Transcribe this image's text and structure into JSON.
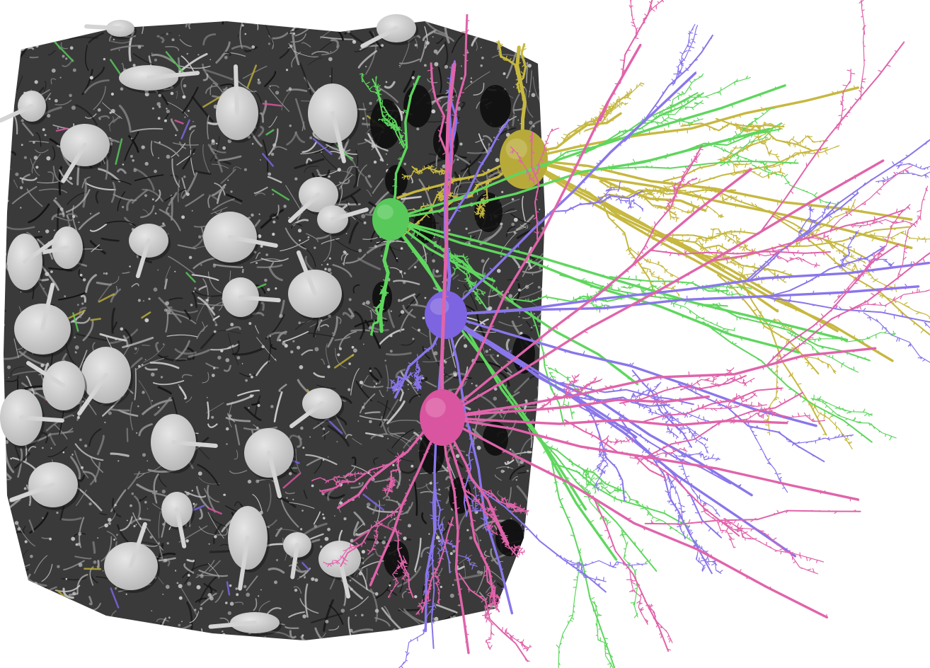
{
  "image": {
    "background": "#ffffff",
    "tissue_block": {
      "base_color": "#3a3a3a",
      "fiber_color": "#8e8e8e",
      "highlight_color": "#c9c9c9",
      "soma_color": "#d4d4d4",
      "shadow_color": "#141414"
    },
    "neurons": [
      {
        "name": "yellow-neuron",
        "color": "#b8aa3a",
        "dendrite_color": "#c6b840"
      },
      {
        "name": "green-neuron",
        "color": "#58c85a",
        "dendrite_color": "#5fd65e"
      },
      {
        "name": "purple-neuron",
        "color": "#7d64e0",
        "dendrite_color": "#8a76ea"
      },
      {
        "name": "pink-neuron",
        "color": "#d9559f",
        "dendrite_color": "#e064aa"
      }
    ]
  }
}
